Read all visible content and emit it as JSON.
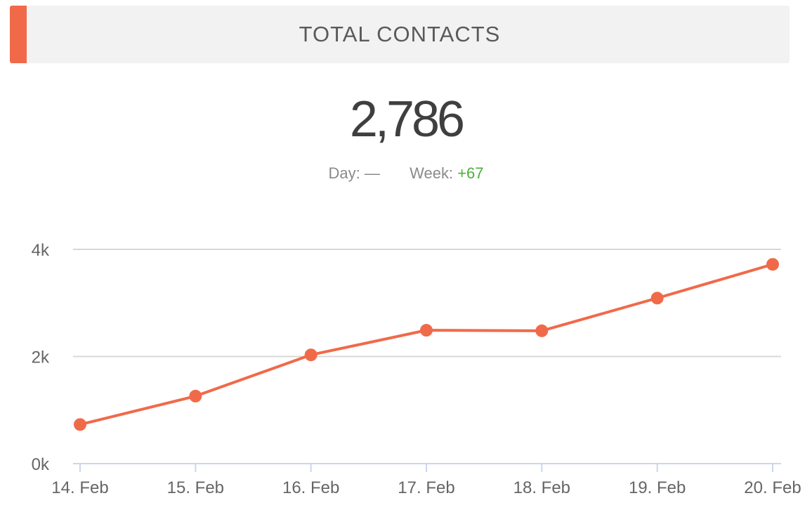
{
  "header": {
    "title": "TOTAL CONTACTS"
  },
  "summary": {
    "total": "2,786",
    "day_label": "Day:",
    "day_value": "—",
    "week_label": "Week:",
    "week_value": "+67"
  },
  "colors": {
    "accent": "#f06a4a",
    "positive": "#4caf3a",
    "grid": "#d8d8d8",
    "axis": "#ccd6eb"
  },
  "chart_data": {
    "type": "line",
    "categories": [
      "14. Feb",
      "15. Feb",
      "16. Feb",
      "17. Feb",
      "18. Feb",
      "19. Feb",
      "20. Feb"
    ],
    "series": [
      {
        "values": [
          730,
          1260,
          2030,
          2490,
          2480,
          3090,
          3720
        ]
      }
    ],
    "ylim": [
      0,
      4000
    ],
    "y_ticks": [
      0,
      2000,
      4000
    ],
    "y_tick_labels": [
      "0k",
      "2k",
      "4k"
    ],
    "grid": true,
    "legend": "none"
  }
}
